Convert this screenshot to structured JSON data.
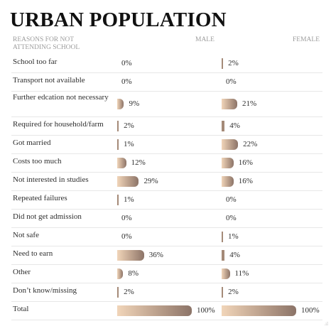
{
  "chart_data": {
    "type": "bar",
    "title": "URBAN POPULATION",
    "header": {
      "reason": "REASONS FOR NOT ATTENDING SCHOOL",
      "male": "MALE",
      "female": "FEMALE"
    },
    "categories": [
      "School too far",
      "Transport not available",
      "Further edcation not necessary",
      "Required for household/farm",
      "Got married",
      "Costs too much",
      "Not interested in studies",
      "Repeated failures",
      "Did not get admission",
      "Not safe",
      "Need to earn",
      "Other",
      "Don’t know/missing",
      "Total"
    ],
    "series": [
      {
        "name": "MALE",
        "values": [
          0,
          0,
          9,
          2,
          1,
          12,
          29,
          1,
          0,
          0,
          36,
          8,
          2,
          100
        ]
      },
      {
        "name": "FEMALE",
        "values": [
          2,
          0,
          21,
          4,
          22,
          16,
          16,
          0,
          0,
          1,
          4,
          11,
          2,
          100
        ]
      }
    ],
    "value_suffix": "%",
    "ylim": [
      0,
      100
    ],
    "colors": {
      "bar_light": "#f1d5b9",
      "bar_dark": "#8c7468"
    }
  }
}
